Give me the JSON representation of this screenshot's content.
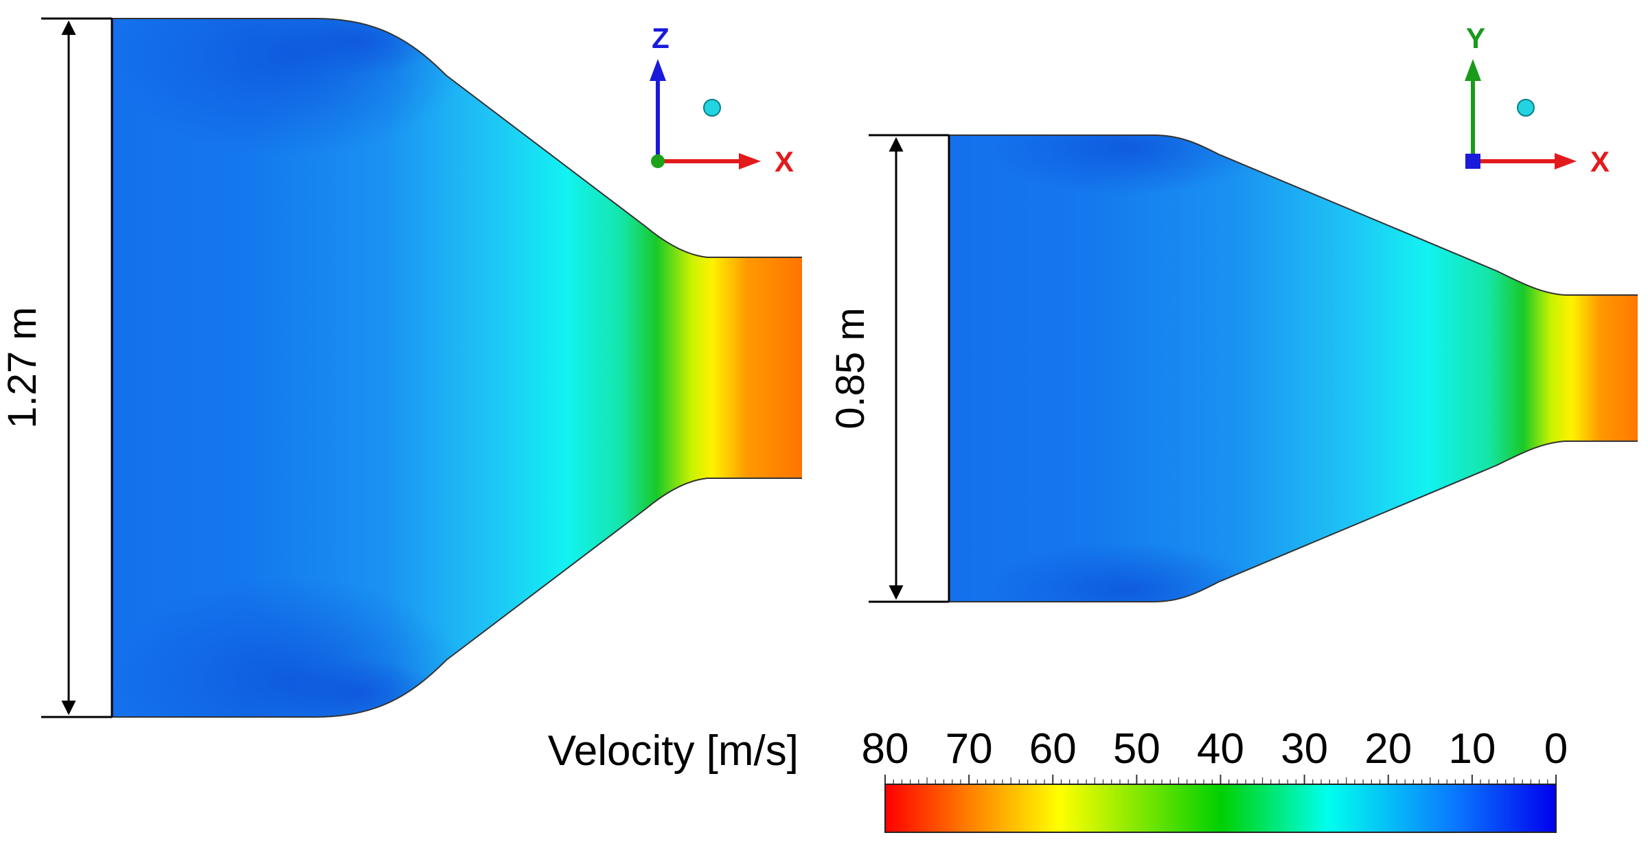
{
  "figure": {
    "left_panel": {
      "height_label": "1.27 m",
      "axes": {
        "vertical": {
          "letter": "Z",
          "color": "#1a1adb"
        },
        "horizontal": {
          "letter": "X",
          "color": "#e31a1c"
        },
        "origin_color": "#1aa31a"
      }
    },
    "right_panel": {
      "height_label": "0.85 m",
      "axes": {
        "vertical": {
          "letter": "Y",
          "color": "#1a9a1a"
        },
        "horizontal": {
          "letter": "X",
          "color": "#e31a1c"
        },
        "origin_color": "#1a1adb"
      }
    },
    "legend": {
      "title": "Velocity [m/s]",
      "ticks": [
        "80",
        "70",
        "60",
        "50",
        "40",
        "30",
        "20",
        "10",
        "0"
      ],
      "value_min": 0,
      "value_max": 80,
      "unit": "m/s"
    },
    "colormap": [
      {
        "pos": 0.0,
        "color": "#ff0000"
      },
      {
        "pos": 0.12,
        "color": "#ff7a00"
      },
      {
        "pos": 0.26,
        "color": "#ffff00"
      },
      {
        "pos": 0.5,
        "color": "#00d000"
      },
      {
        "pos": 0.66,
        "color": "#00ffee"
      },
      {
        "pos": 0.85,
        "color": "#0a78ff"
      },
      {
        "pos": 1.0,
        "color": "#0000ee"
      }
    ]
  }
}
